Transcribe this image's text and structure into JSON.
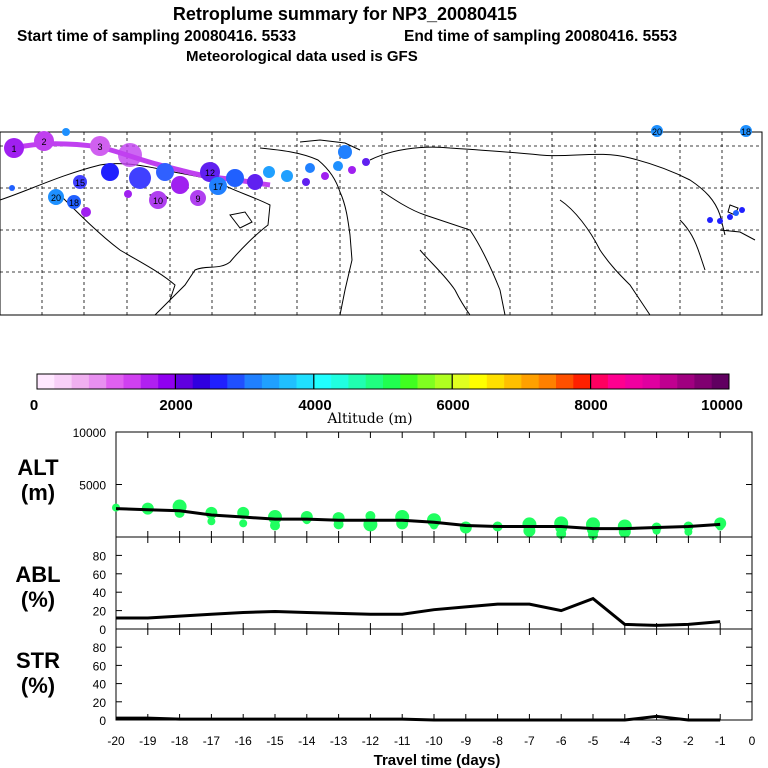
{
  "header": {
    "title": "Retroplume summary for NP3_20080415",
    "start_label": "Start time of sampling 20080416.  5533",
    "end_label": "End time of sampling 20080416.  5553",
    "met_label": "Meteorological data used is GFS"
  },
  "map": {
    "description_markers": [
      {
        "label": "1",
        "color": "#a020f0"
      },
      {
        "label": "2",
        "color": "#c040f0"
      },
      {
        "label": "3",
        "color": "#d060f0"
      },
      {
        "label": "20",
        "color": "#1e90ff"
      },
      {
        "label": "19",
        "color": "#1e90ff"
      },
      {
        "label": "18",
        "color": "#2060ff"
      },
      {
        "label": "10",
        "color": "#b040f0"
      },
      {
        "label": "9",
        "color": "#b040f0"
      },
      {
        "label": "15",
        "color": "#4040ff"
      },
      {
        "label": "16",
        "color": "#3060ff"
      },
      {
        "label": "17",
        "color": "#2080ff"
      },
      {
        "label": "12",
        "color": "#6020f0"
      }
    ]
  },
  "colorbar": {
    "title": "Altitude (m)",
    "tick_labels": [
      "0",
      "2000",
      "4000",
      "6000",
      "8000",
      "10000"
    ],
    "colors": [
      "#ffe8ff",
      "#f8d0f8",
      "#f0b0f0",
      "#e890f0",
      "#e060f0",
      "#d040f0",
      "#b020f0",
      "#9000f0",
      "#6000e0",
      "#3000e0",
      "#2020ff",
      "#2050ff",
      "#2080ff",
      "#20a0ff",
      "#20c0ff",
      "#20e0ff",
      "#20ffff",
      "#20ffe0",
      "#20ffb0",
      "#20ff80",
      "#20ff50",
      "#40ff20",
      "#80ff20",
      "#b0ff20",
      "#e0ff20",
      "#ffff00",
      "#ffe000",
      "#ffc000",
      "#ffa000",
      "#ff8000",
      "#ff5000",
      "#ff2000",
      "#ff0060",
      "#ff0090",
      "#f000a0",
      "#e000a0",
      "#c00090",
      "#a00080",
      "#800070",
      "#600060"
    ]
  },
  "x_axis": {
    "label": "Travel time (days)",
    "tick_labels": [
      "-20",
      "-19",
      "-18",
      "-17",
      "-16",
      "-15",
      "-14",
      "-13",
      "-12",
      "-11",
      "-10",
      "-9",
      "-8",
      "-7",
      "-6",
      "-5",
      "-4",
      "-3",
      "-2",
      "-1",
      "0"
    ]
  },
  "chart_data": [
    {
      "type": "line",
      "name": "ALT",
      "ylabel": "ALT",
      "yunit": "(m)",
      "ylim": [
        0,
        10000
      ],
      "ytick_labels": [
        "10000",
        "5000"
      ],
      "x": [
        -20,
        -19,
        -18,
        -17,
        -16,
        -15,
        -14,
        -13,
        -12,
        -11,
        -10,
        -9,
        -8,
        -7,
        -6,
        -5,
        -4,
        -3,
        -2,
        -1
      ],
      "values": [
        2700,
        2600,
        2500,
        2100,
        1900,
        1700,
        1700,
        1600,
        1600,
        1600,
        1400,
        1100,
        1000,
        1000,
        1000,
        800,
        800,
        900,
        1000,
        1200
      ],
      "scatter_color": "#20ff60",
      "scatter_points": [
        {
          "x": -20,
          "y": 2800,
          "r": 4
        },
        {
          "x": -19,
          "y": 2700,
          "r": 6
        },
        {
          "x": -18,
          "y": 2900,
          "r": 7
        },
        {
          "x": -18,
          "y": 2300,
          "r": 5
        },
        {
          "x": -17,
          "y": 2300,
          "r": 6
        },
        {
          "x": -17,
          "y": 1500,
          "r": 4
        },
        {
          "x": -16,
          "y": 2300,
          "r": 6
        },
        {
          "x": -16,
          "y": 1300,
          "r": 4
        },
        {
          "x": -15,
          "y": 1900,
          "r": 7
        },
        {
          "x": -15,
          "y": 1100,
          "r": 5
        },
        {
          "x": -14,
          "y": 1900,
          "r": 6
        },
        {
          "x": -14,
          "y": 1600,
          "r": 4
        },
        {
          "x": -13,
          "y": 1800,
          "r": 6
        },
        {
          "x": -13,
          "y": 1200,
          "r": 5
        },
        {
          "x": -12,
          "y": 2000,
          "r": 5
        },
        {
          "x": -12,
          "y": 1200,
          "r": 7
        },
        {
          "x": -11,
          "y": 1900,
          "r": 7
        },
        {
          "x": -11,
          "y": 1300,
          "r": 6
        },
        {
          "x": -10,
          "y": 1600,
          "r": 7
        },
        {
          "x": -10,
          "y": 1100,
          "r": 4
        },
        {
          "x": -9,
          "y": 900,
          "r": 6
        },
        {
          "x": -8,
          "y": 1000,
          "r": 5
        },
        {
          "x": -7,
          "y": 1200,
          "r": 7
        },
        {
          "x": -7,
          "y": 600,
          "r": 6
        },
        {
          "x": -6,
          "y": 1300,
          "r": 7
        },
        {
          "x": -6,
          "y": 900,
          "r": 6
        },
        {
          "x": -6,
          "y": 300,
          "r": 5
        },
        {
          "x": -5,
          "y": 1200,
          "r": 7
        },
        {
          "x": -5,
          "y": 700,
          "r": 6
        },
        {
          "x": -5,
          "y": 200,
          "r": 5
        },
        {
          "x": -4,
          "y": 1000,
          "r": 7
        },
        {
          "x": -4,
          "y": 500,
          "r": 6
        },
        {
          "x": -3,
          "y": 900,
          "r": 5
        },
        {
          "x": -3,
          "y": 600,
          "r": 4
        },
        {
          "x": -2,
          "y": 1000,
          "r": 5
        },
        {
          "x": -2,
          "y": 500,
          "r": 4
        },
        {
          "x": -1,
          "y": 1300,
          "r": 6
        },
        {
          "x": -1,
          "y": 1000,
          "r": 4
        }
      ]
    },
    {
      "type": "line",
      "name": "ABL",
      "ylabel": "ABL",
      "yunit": "(%)",
      "ylim": [
        0,
        100
      ],
      "ytick_labels": [
        "0",
        "20",
        "40",
        "60",
        "80"
      ],
      "x": [
        -20,
        -19,
        -18,
        -17,
        -16,
        -15,
        -14,
        -13,
        -12,
        -11,
        -10,
        -9,
        -8,
        -7,
        -6,
        -5,
        -4,
        -3,
        -2,
        -1
      ],
      "values": [
        12,
        12,
        14,
        16,
        18,
        19,
        18,
        17,
        16,
        16,
        21,
        24,
        27,
        27,
        20,
        33,
        5,
        4,
        5,
        8
      ]
    },
    {
      "type": "line",
      "name": "STR",
      "ylabel": "STR",
      "yunit": "(%)",
      "ylim": [
        0,
        100
      ],
      "ytick_labels": [
        "0",
        "20",
        "40",
        "60",
        "80"
      ],
      "x": [
        -20,
        -19,
        -18,
        -17,
        -16,
        -15,
        -14,
        -13,
        -12,
        -11,
        -10,
        -9,
        -8,
        -7,
        -6,
        -5,
        -4,
        -3,
        -2,
        -1
      ],
      "values": [
        2,
        2,
        1,
        1,
        1,
        1,
        1,
        1,
        1,
        1,
        0,
        0,
        0,
        0,
        0,
        0,
        0,
        4,
        0,
        0
      ]
    }
  ]
}
